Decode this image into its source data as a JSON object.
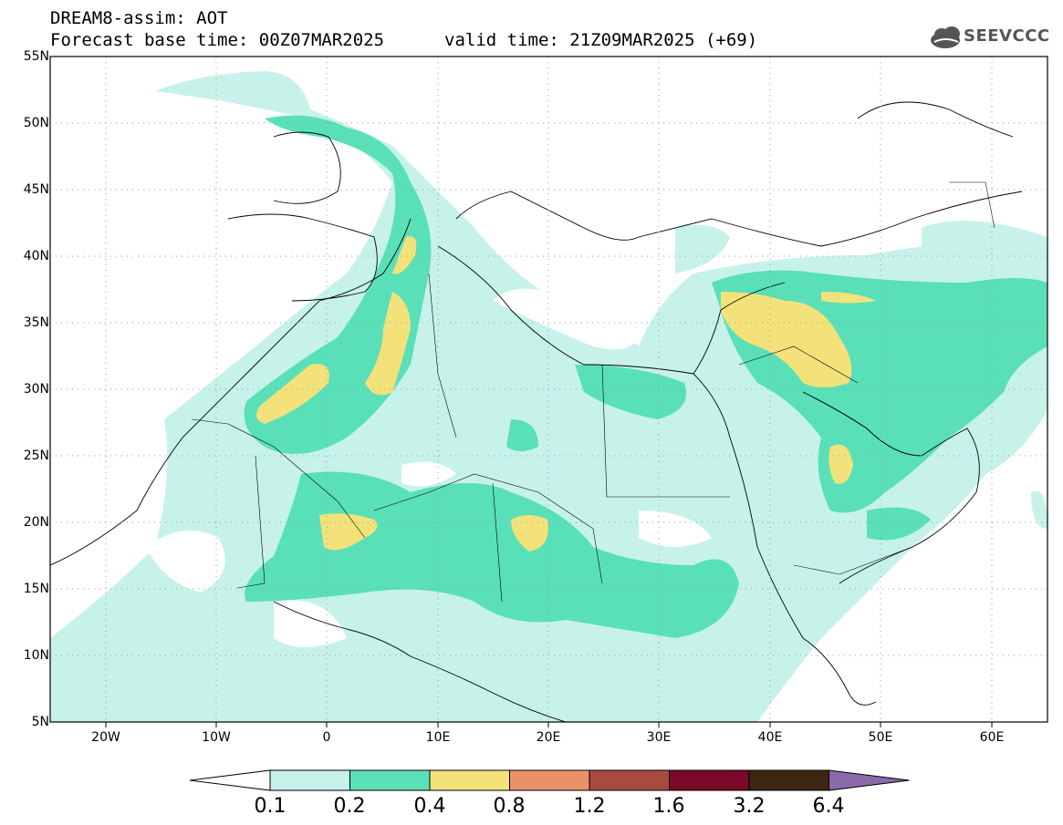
{
  "header": {
    "line1": "DREAM8-assim: AOT",
    "line2": "Forecast base time: 00Z07MAR2025",
    "valid": "valid time: 21Z09MAR2025 (+69)"
  },
  "logo": {
    "text": "SEEVCCC",
    "icon": "cloud-logo-icon"
  },
  "axes": {
    "lat_labels": [
      "55N",
      "50N",
      "45N",
      "40N",
      "35N",
      "30N",
      "25N",
      "20N",
      "15N",
      "10N",
      "5N"
    ],
    "lon_labels": [
      "20W",
      "10W",
      "0",
      "10E",
      "20E",
      "30E",
      "40E",
      "50E",
      "60E"
    ],
    "lon_range": [
      -25,
      65
    ],
    "lat_range": [
      5,
      55
    ],
    "grid": "dotted"
  },
  "legend": {
    "levels": [
      "0.1",
      "0.2",
      "0.4",
      "0.8",
      "1.2",
      "1.6",
      "3.2",
      "6.4"
    ],
    "colors": [
      "#ffffff",
      "#c6f2ea",
      "#5ae0b8",
      "#f3e27a",
      "#ea916a",
      "#a84a40",
      "#7a0a2a",
      "#3a2812",
      "#8a6aaa"
    ]
  },
  "map_colors": {
    "low": "#c6f2ea",
    "mid": "#5ae0b8",
    "high": "#f3e27a",
    "border": "#000000"
  }
}
